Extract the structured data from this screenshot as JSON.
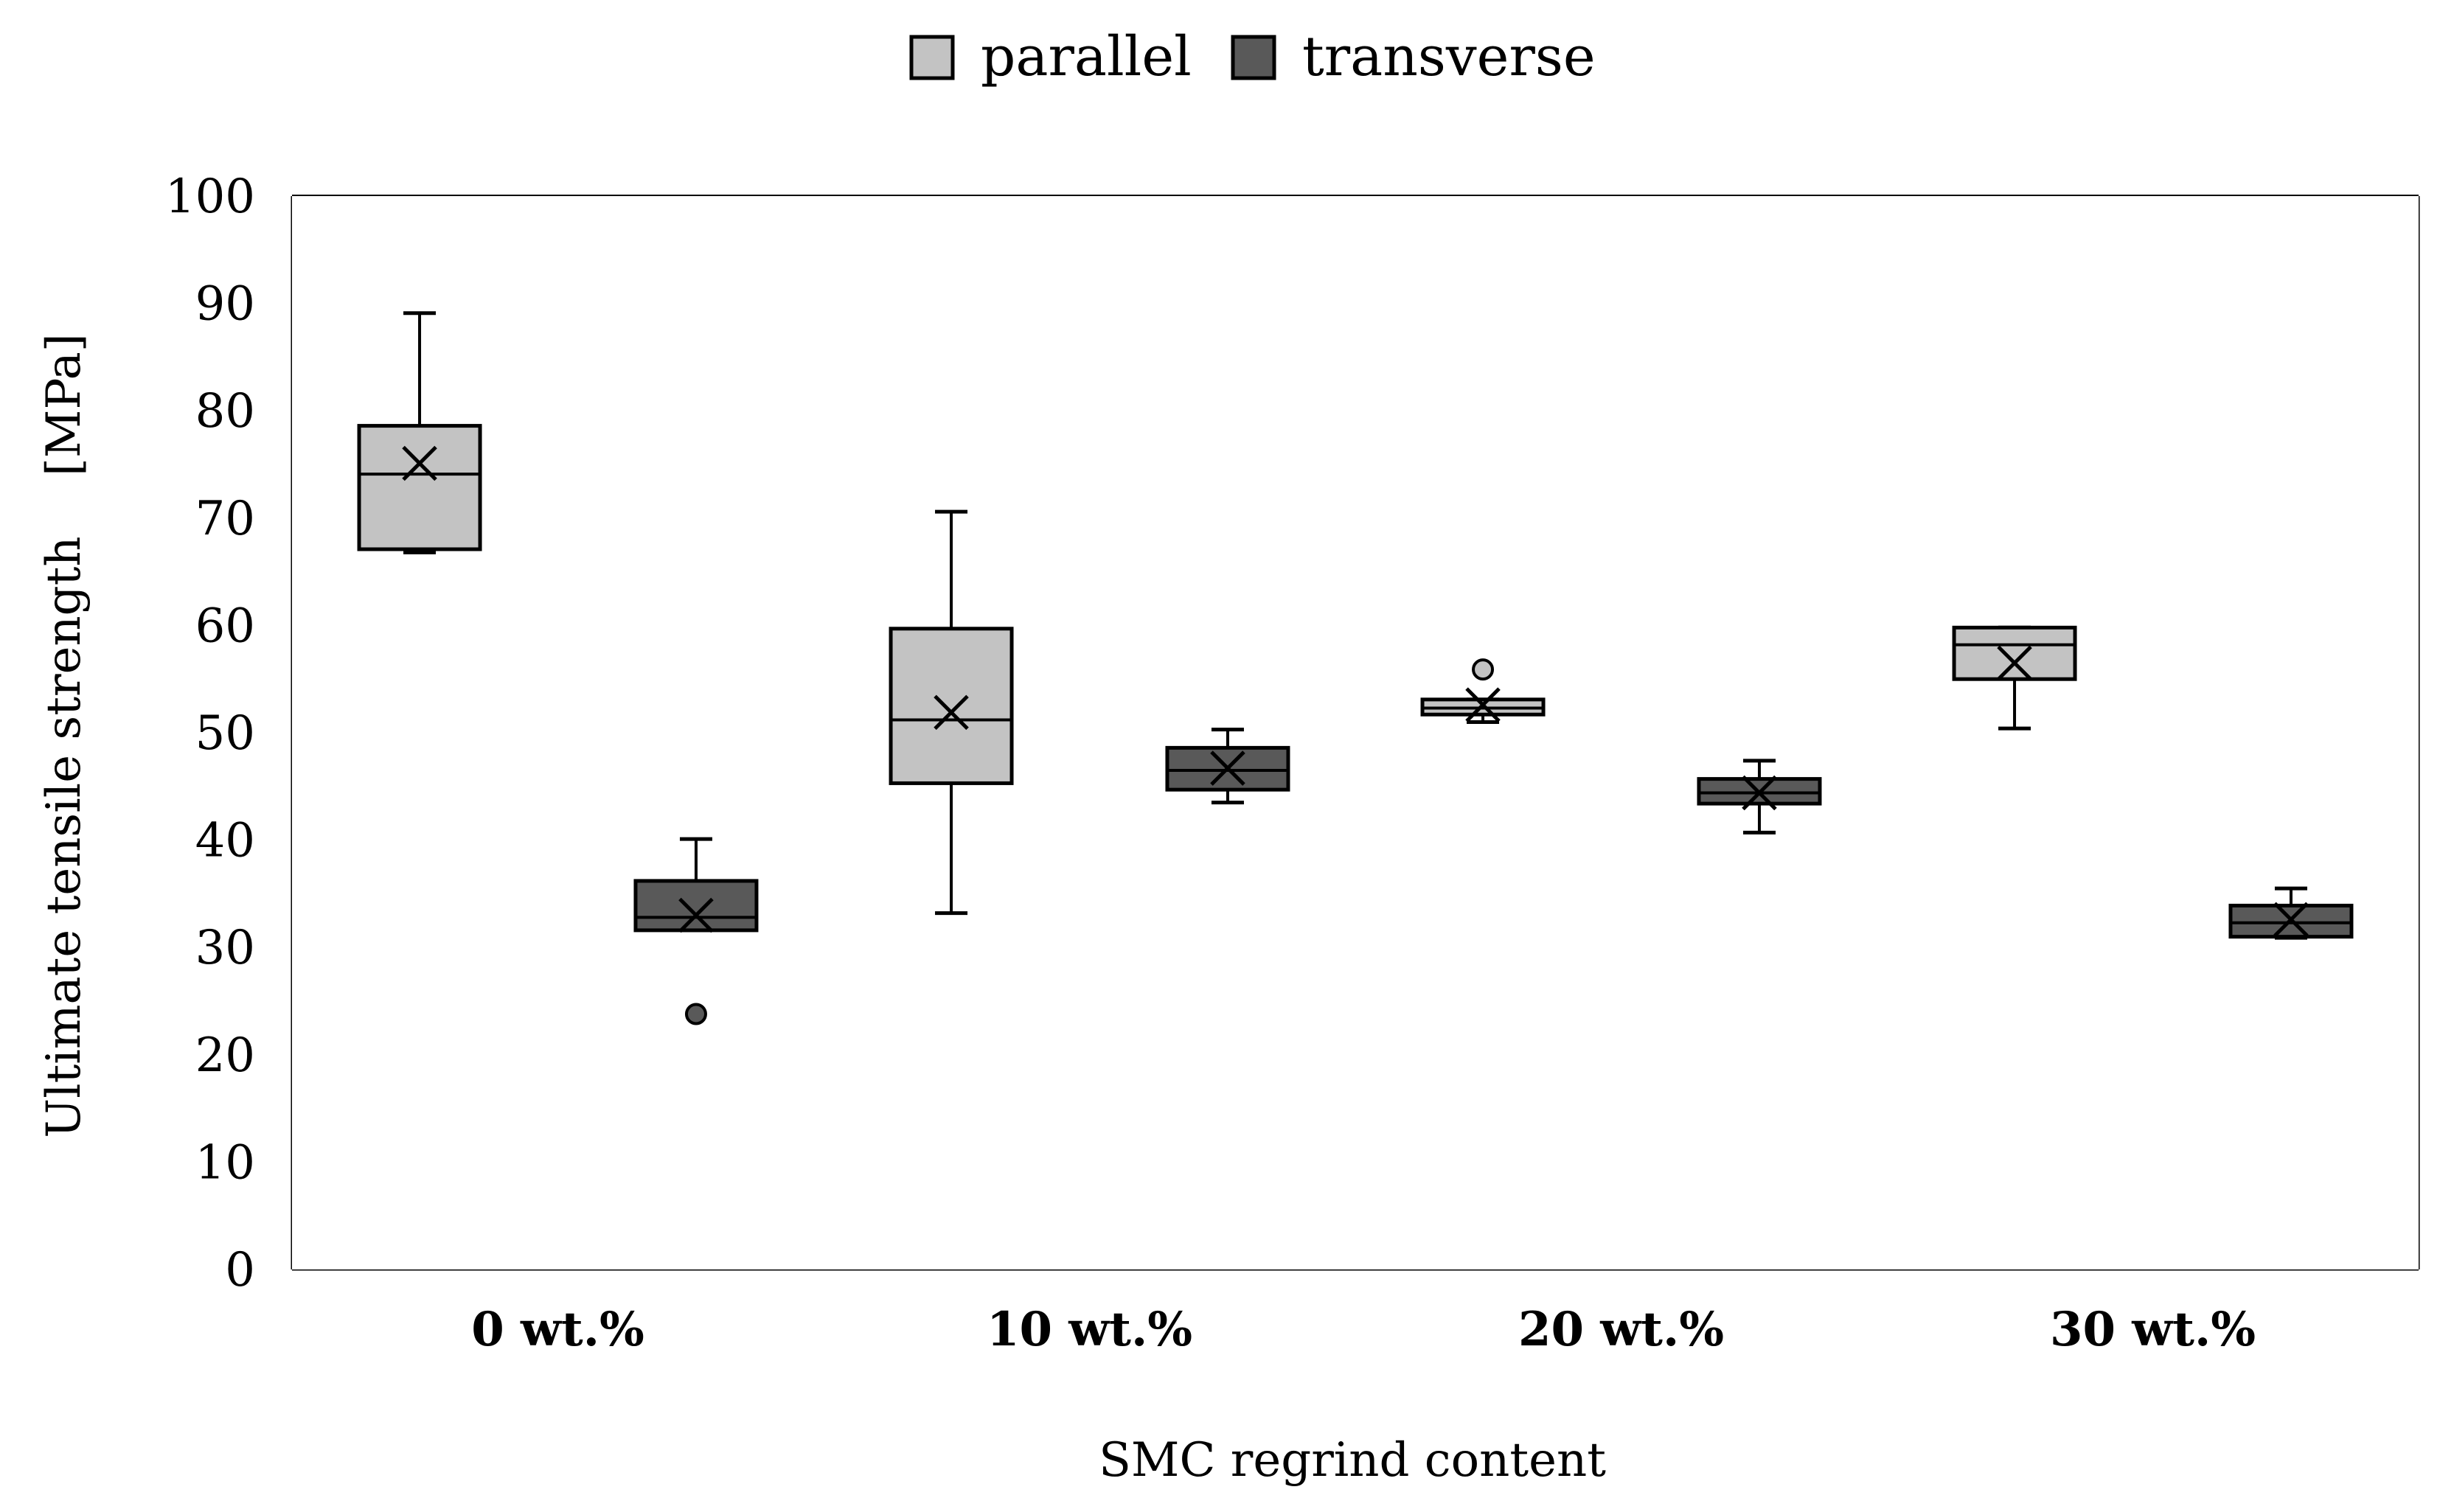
{
  "chart_data": {
    "type": "boxplot",
    "title": "",
    "xlabel": "SMC regrind content",
    "ylabel": "Ultimate tensile strength    [MPa]",
    "ylim": [
      0,
      100
    ],
    "yticks": [
      0,
      10,
      20,
      30,
      40,
      50,
      60,
      70,
      80,
      90,
      100
    ],
    "ytick_labels": [
      "0",
      "10",
      "20",
      "30",
      "40",
      "50",
      "60",
      "70",
      "80",
      "90",
      "100"
    ],
    "categories": [
      "0 wt.%",
      "10 wt.%",
      "20 wt.%",
      "30 wt.%"
    ],
    "legend_position": "top-center",
    "grid": true,
    "series": [
      {
        "name": "parallel",
        "color": "#c3c3c3",
        "boxes": [
          {
            "min": 66.8,
            "q1": 67.1,
            "median": 74.1,
            "q3": 78.6,
            "max": 89.1,
            "mean": 75.1,
            "outliers": []
          },
          {
            "min": 33.2,
            "q1": 45.3,
            "median": 51.2,
            "q3": 59.7,
            "max": 70.6,
            "mean": 51.9,
            "outliers": []
          },
          {
            "min": 51.0,
            "q1": 51.7,
            "median": 52.3,
            "q3": 53.1,
            "max": 53.1,
            "mean": 52.6,
            "outliers": [
              55.9
            ]
          },
          {
            "min": 50.4,
            "q1": 55.0,
            "median": 58.2,
            "q3": 59.8,
            "max": 59.8,
            "mean": 56.5,
            "outliers": []
          }
        ]
      },
      {
        "name": "transverse",
        "color": "#595959",
        "boxes": [
          {
            "min": 31.6,
            "q1": 31.6,
            "median": 32.8,
            "q3": 36.2,
            "max": 40.1,
            "mean": 33.0,
            "outliers": [
              23.8
            ]
          },
          {
            "min": 43.5,
            "q1": 44.7,
            "median": 46.5,
            "q3": 48.6,
            "max": 50.3,
            "mean": 46.7,
            "outliers": []
          },
          {
            "min": 40.7,
            "q1": 43.4,
            "median": 44.4,
            "q3": 45.7,
            "max": 47.4,
            "mean": 44.4,
            "outliers": []
          },
          {
            "min": 30.9,
            "q1": 31.0,
            "median": 32.3,
            "q3": 33.9,
            "max": 35.5,
            "mean": 32.6,
            "outliers": []
          }
        ]
      }
    ]
  }
}
